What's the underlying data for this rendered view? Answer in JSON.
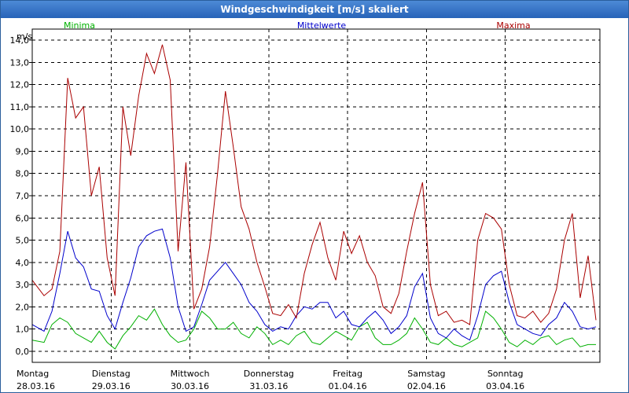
{
  "window": {
    "title": "Windgeschwindigkeit [m/s] skaliert"
  },
  "chart_data": {
    "type": "line",
    "title": "Windgeschwindigkeit [m/s] skaliert",
    "ylabel": "m/s",
    "ylim": [
      -0.5,
      14.5
    ],
    "yticks": [
      "0,0",
      "1,0",
      "2,0",
      "3,0",
      "4,0",
      "5,0",
      "6,0",
      "7,0",
      "8,0",
      "9,0",
      "10,0",
      "11,0",
      "12,0",
      "13,0",
      "14,0"
    ],
    "xlim_days": [
      0,
      7.2
    ],
    "days": [
      {
        "weekday": "Montag",
        "date": "28.03.16"
      },
      {
        "weekday": "Dienstag",
        "date": "29.03.16"
      },
      {
        "weekday": "Mittwoch",
        "date": "30.03.16"
      },
      {
        "weekday": "Donnerstag",
        "date": "31.03.16"
      },
      {
        "weekday": "Freitag",
        "date": "01.04.16"
      },
      {
        "weekday": "Samstag",
        "date": "02.04.16"
      },
      {
        "weekday": "Sonntag",
        "date": "03.04.16"
      }
    ],
    "grid": true,
    "legend": "top",
    "series": [
      {
        "name": "Minima",
        "color": "#00b000",
        "x": [
          0.0,
          0.15,
          0.25,
          0.35,
          0.45,
          0.55,
          0.65,
          0.75,
          0.85,
          0.95,
          1.05,
          1.15,
          1.25,
          1.35,
          1.45,
          1.55,
          1.65,
          1.75,
          1.85,
          1.95,
          2.05,
          2.15,
          2.25,
          2.35,
          2.45,
          2.55,
          2.65,
          2.75,
          2.85,
          2.95,
          3.05,
          3.15,
          3.25,
          3.35,
          3.45,
          3.55,
          3.65,
          3.75,
          3.85,
          3.95,
          4.05,
          4.15,
          4.25,
          4.35,
          4.45,
          4.55,
          4.65,
          4.75,
          4.85,
          4.95,
          5.05,
          5.15,
          5.25,
          5.35,
          5.45,
          5.55,
          5.65,
          5.75,
          5.85,
          5.95,
          6.05,
          6.15,
          6.25,
          6.35,
          6.45,
          6.55,
          6.65,
          6.75,
          6.85,
          6.95,
          7.05,
          7.15
        ],
        "y": [
          0.5,
          0.4,
          1.2,
          1.5,
          1.3,
          0.8,
          0.6,
          0.4,
          0.9,
          0.4,
          0.1,
          0.7,
          1.1,
          1.6,
          1.4,
          1.9,
          1.2,
          0.7,
          0.4,
          0.5,
          1.0,
          1.8,
          1.5,
          1.0,
          1.0,
          1.3,
          0.8,
          0.6,
          1.1,
          0.8,
          0.3,
          0.5,
          0.3,
          0.7,
          0.9,
          0.4,
          0.3,
          0.6,
          0.9,
          0.7,
          0.5,
          1.1,
          1.3,
          0.6,
          0.3,
          0.3,
          0.5,
          0.8,
          1.5,
          1.0,
          0.4,
          0.3,
          0.6,
          0.3,
          0.2,
          0.4,
          0.6,
          1.8,
          1.5,
          1.0,
          0.4,
          0.2,
          0.5,
          0.3,
          0.6,
          0.7,
          0.3,
          0.5,
          0.6,
          0.2,
          0.3,
          0.3
        ]
      },
      {
        "name": "Mittelwerte",
        "color": "#0000cc",
        "x": [
          0.0,
          0.15,
          0.25,
          0.35,
          0.45,
          0.55,
          0.65,
          0.75,
          0.85,
          0.95,
          1.05,
          1.15,
          1.25,
          1.35,
          1.45,
          1.55,
          1.65,
          1.75,
          1.85,
          1.95,
          2.05,
          2.15,
          2.25,
          2.35,
          2.45,
          2.55,
          2.65,
          2.75,
          2.85,
          2.95,
          3.05,
          3.15,
          3.25,
          3.35,
          3.45,
          3.55,
          3.65,
          3.75,
          3.85,
          3.95,
          4.05,
          4.15,
          4.25,
          4.35,
          4.45,
          4.55,
          4.65,
          4.75,
          4.85,
          4.95,
          5.05,
          5.15,
          5.25,
          5.35,
          5.45,
          5.55,
          5.65,
          5.75,
          5.85,
          5.95,
          6.05,
          6.15,
          6.25,
          6.35,
          6.45,
          6.55,
          6.65,
          6.75,
          6.85,
          6.95,
          7.05,
          7.15
        ],
        "y": [
          1.2,
          0.9,
          1.8,
          3.5,
          5.4,
          4.2,
          3.8,
          2.8,
          2.7,
          1.6,
          1.0,
          2.2,
          3.3,
          4.7,
          5.2,
          5.4,
          5.5,
          4.2,
          2.0,
          0.9,
          1.1,
          2.1,
          3.2,
          3.6,
          4.0,
          3.5,
          3.0,
          2.2,
          1.8,
          1.2,
          0.9,
          1.1,
          1.0,
          1.6,
          2.0,
          1.9,
          2.2,
          2.2,
          1.5,
          1.8,
          1.2,
          1.1,
          1.5,
          1.8,
          1.4,
          0.8,
          1.1,
          1.6,
          2.9,
          3.5,
          1.5,
          0.8,
          0.6,
          1.0,
          0.7,
          0.5,
          1.6,
          3.0,
          3.4,
          3.6,
          2.2,
          1.2,
          1.0,
          0.8,
          0.7,
          1.2,
          1.5,
          2.2,
          1.8,
          1.1,
          1.0,
          1.1
        ]
      },
      {
        "name": "Maxima",
        "color": "#aa0000",
        "x": [
          0.0,
          0.15,
          0.25,
          0.35,
          0.45,
          0.55,
          0.65,
          0.75,
          0.85,
          0.95,
          1.05,
          1.15,
          1.25,
          1.35,
          1.45,
          1.55,
          1.65,
          1.75,
          1.85,
          1.95,
          2.05,
          2.15,
          2.25,
          2.35,
          2.45,
          2.55,
          2.65,
          2.75,
          2.85,
          2.95,
          3.05,
          3.15,
          3.25,
          3.35,
          3.45,
          3.55,
          3.65,
          3.75,
          3.85,
          3.95,
          4.05,
          4.15,
          4.25,
          4.35,
          4.45,
          4.55,
          4.65,
          4.75,
          4.85,
          4.95,
          5.05,
          5.15,
          5.25,
          5.35,
          5.45,
          5.55,
          5.65,
          5.75,
          5.85,
          5.95,
          6.05,
          6.15,
          6.25,
          6.35,
          6.45,
          6.55,
          6.65,
          6.75,
          6.85,
          6.95,
          7.05,
          7.15
        ],
        "y": [
          3.2,
          2.5,
          2.8,
          4.5,
          12.3,
          10.5,
          11.0,
          7.0,
          8.3,
          4.2,
          2.5,
          11.0,
          8.8,
          11.5,
          13.4,
          12.5,
          13.8,
          12.2,
          4.5,
          8.5,
          1.9,
          2.8,
          4.7,
          8.0,
          11.7,
          9.2,
          6.5,
          5.5,
          4.0,
          2.9,
          1.7,
          1.6,
          2.1,
          1.5,
          3.5,
          4.8,
          5.8,
          4.2,
          3.2,
          5.4,
          4.4,
          5.2,
          4.0,
          3.4,
          2.0,
          1.7,
          2.6,
          4.5,
          6.2,
          7.6,
          3.0,
          1.6,
          1.8,
          1.3,
          1.4,
          1.2,
          5.0,
          6.2,
          6.0,
          5.5,
          3.0,
          1.6,
          1.5,
          1.8,
          1.3,
          1.7,
          2.8,
          5.0,
          6.2,
          2.4,
          4.3,
          1.4
        ]
      }
    ]
  }
}
